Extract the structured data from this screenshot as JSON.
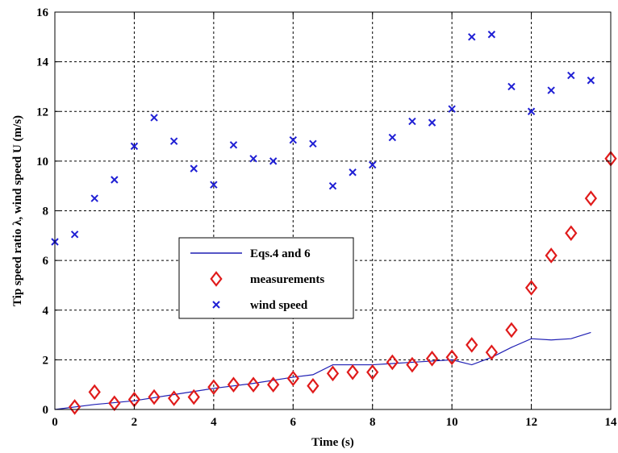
{
  "chart_data": {
    "type": "line+scatter",
    "xlabel": "Time (s)",
    "ylabel": "Tip speed ratio λ, wind speed U (m/s)",
    "xlim": [
      0,
      14
    ],
    "ylim": [
      0,
      16
    ],
    "xticks": [
      0,
      2,
      4,
      6,
      8,
      10,
      12,
      14
    ],
    "yticks": [
      0,
      2,
      4,
      6,
      8,
      10,
      12,
      14,
      16
    ],
    "grid": true,
    "legend_position": "center-left",
    "series": [
      {
        "name": "Eqs.4 and 6",
        "kind": "line",
        "color": "#1f1fb4",
        "x": [
          0,
          1,
          2,
          3,
          4,
          5,
          6,
          6.5,
          7,
          7.5,
          8,
          8.5,
          9,
          9.5,
          10,
          10.5,
          11,
          11.5,
          12,
          12.5,
          13,
          13.5
        ],
        "y": [
          0,
          0.2,
          0.35,
          0.6,
          0.85,
          1.05,
          1.3,
          1.4,
          1.8,
          1.8,
          1.8,
          1.85,
          1.9,
          1.95,
          2.0,
          1.8,
          2.1,
          2.5,
          2.85,
          2.8,
          2.85,
          3.1
        ]
      },
      {
        "name": "measurements",
        "kind": "diamond",
        "color": "#e01b1b",
        "x": [
          0.5,
          1,
          1.5,
          2,
          2.5,
          3,
          3.5,
          4,
          4.5,
          5,
          5.5,
          6,
          6.5,
          7,
          7.5,
          8,
          8.5,
          9,
          9.5,
          10,
          10.5,
          11,
          11.5,
          12,
          12.5,
          13,
          13.5,
          14
        ],
        "y": [
          0.1,
          0.7,
          0.25,
          0.4,
          0.5,
          0.45,
          0.5,
          0.9,
          1.0,
          1.0,
          1.0,
          1.25,
          0.95,
          1.45,
          1.5,
          1.5,
          1.9,
          1.8,
          2.05,
          2.1,
          2.6,
          2.3,
          3.2,
          4.9,
          6.2,
          7.1,
          8.5,
          10.1
        ]
      },
      {
        "name": "wind speed",
        "kind": "cross",
        "color": "#1f1fd4",
        "x": [
          0,
          0.5,
          1,
          1.5,
          2,
          2.5,
          3,
          3.5,
          4,
          4.5,
          5,
          5.5,
          6,
          6.5,
          7,
          7.5,
          8,
          8.5,
          9,
          9.5,
          10,
          10.5,
          11,
          11.5,
          12,
          12.5,
          13,
          13.5
        ],
        "y": [
          6.75,
          7.05,
          8.5,
          9.25,
          10.6,
          11.75,
          10.8,
          9.7,
          9.05,
          10.65,
          10.1,
          10.0,
          10.85,
          10.7,
          9.0,
          9.55,
          9.85,
          10.95,
          11.6,
          11.55,
          12.1,
          15.0,
          15.1,
          13.0,
          12.0,
          12.85,
          13.45,
          13.25
        ]
      }
    ]
  }
}
